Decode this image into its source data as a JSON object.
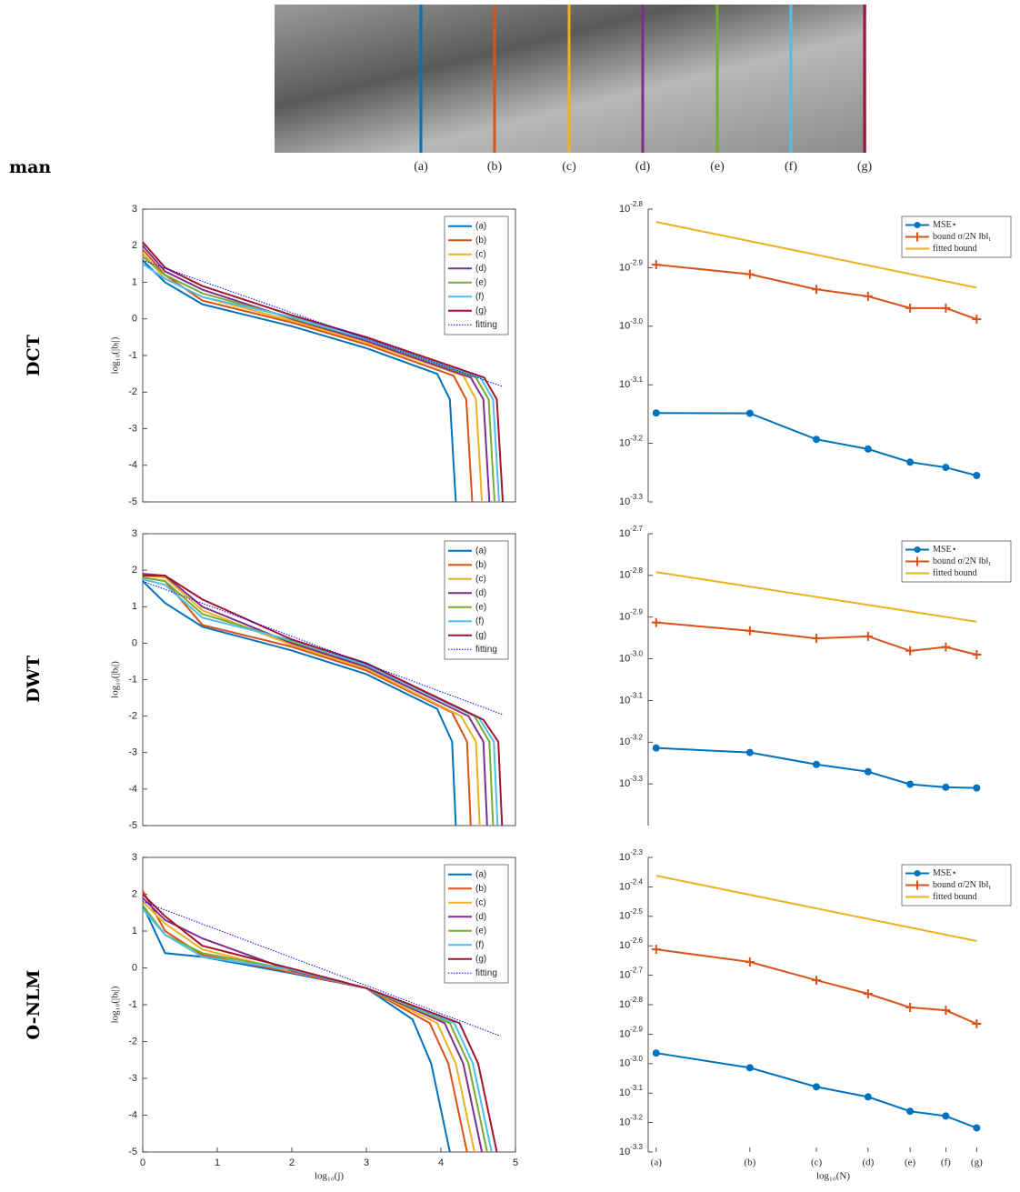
{
  "figure_label": "man",
  "strip_labels": [
    "(a)",
    "(b)",
    "(c)",
    "(d)",
    "(e)",
    "(f)",
    "(g)"
  ],
  "row_labels": [
    "DCT",
    "DWT",
    "O-NLM"
  ],
  "chart_data": [
    {
      "type": "line",
      "ylabel": "log₁₀(|bⱼ|)",
      "xlim": [
        0,
        5
      ],
      "ylim": [
        -5,
        3
      ],
      "yticks": [
        -5,
        -4,
        -3,
        -2,
        -1,
        0,
        1,
        2,
        3
      ],
      "box": true,
      "legend": "upper right",
      "series": [
        {
          "name": "(a)",
          "color": "#0072bd",
          "x": [
            0,
            0.3,
            0.8,
            2,
            3,
            3.95,
            4.12,
            4.2
          ],
          "values": [
            1.6,
            1.0,
            0.4,
            -0.2,
            -0.8,
            -1.5,
            -2.2,
            -5
          ]
        },
        {
          "name": "(b)",
          "color": "#d95319",
          "x": [
            0,
            0.3,
            0.8,
            2,
            3,
            4.17,
            4.34,
            4.42
          ],
          "values": [
            1.9,
            1.2,
            0.5,
            -0.1,
            -0.7,
            -1.55,
            -2.2,
            -5
          ]
        },
        {
          "name": "(c)",
          "color": "#edb120",
          "x": [
            0,
            0.3,
            0.8,
            2,
            3,
            4.3,
            4.47,
            4.55
          ],
          "values": [
            1.8,
            1.1,
            0.6,
            -0.05,
            -0.65,
            -1.55,
            -2.2,
            -5
          ]
        },
        {
          "name": "(d)",
          "color": "#7e2f8e",
          "x": [
            0,
            0.3,
            0.8,
            2,
            3,
            4.4,
            4.57,
            4.65
          ],
          "values": [
            2.0,
            1.3,
            0.8,
            0,
            -0.6,
            -1.6,
            -2.2,
            -5
          ]
        },
        {
          "name": "(e)",
          "color": "#77ac30",
          "x": [
            0,
            0.3,
            0.8,
            2,
            3,
            4.47,
            4.64,
            4.72
          ],
          "values": [
            1.7,
            1.2,
            0.7,
            0.02,
            -0.55,
            -1.6,
            -2.2,
            -5
          ]
        },
        {
          "name": "(f)",
          "color": "#4dbeee",
          "x": [
            0,
            0.3,
            0.8,
            2,
            3,
            4.53,
            4.7,
            4.78
          ],
          "values": [
            1.5,
            1.1,
            0.6,
            0.05,
            -0.55,
            -1.6,
            -2.2,
            -5
          ]
        },
        {
          "name": "(g)",
          "color": "#a2142f",
          "x": [
            0,
            0.3,
            0.8,
            2,
            3,
            4.58,
            4.75,
            4.83
          ],
          "values": [
            2.1,
            1.4,
            0.9,
            0.1,
            -0.5,
            -1.6,
            -2.2,
            -5
          ]
        },
        {
          "name": "fitting",
          "color": "#0000ff",
          "linestyle": "dotted",
          "x": [
            0,
            4.83
          ],
          "values": [
            1.6,
            -1.85
          ]
        }
      ]
    },
    {
      "type": "line",
      "log_scale": true,
      "xlim": [
        -0.015,
        0.68
      ],
      "x": [
        0,
        0.176,
        0.301,
        0.398,
        0.477,
        0.544,
        0.602
      ],
      "ylim": [
        0.0005012,
        0.001585
      ],
      "yticks": [
        {
          "value": 0.0005012,
          "label": "10^-3.3"
        },
        {
          "value": 0.000631,
          "label": "10^-3.2"
        },
        {
          "value": 0.0007943,
          "label": "10^-3.1"
        },
        {
          "value": 0.001,
          "label": "10^-3.0"
        },
        {
          "value": 0.001259,
          "label": "10^-2.9"
        },
        {
          "value": 0.001585,
          "label": "10^-2.8"
        }
      ],
      "legend": "upper right",
      "series": [
        {
          "name": "MSE⋆",
          "color": "#0072bd",
          "marker": "o",
          "values": [
            0.000711,
            0.00071,
            0.000641,
            0.000617,
            0.000586,
            0.000574,
            0.000556
          ]
        },
        {
          "name": "bound σ/2N ‖b‖₁",
          "color": "#d95319",
          "marker": "+",
          "values": [
            0.001274,
            0.001227,
            0.001156,
            0.001125,
            0.001074,
            0.001074,
            0.001028
          ]
        },
        {
          "name": "fitted bound",
          "color": "#edb120",
          "x": [
            0,
            0.602
          ],
          "values": [
            0.001507,
            0.001164
          ]
        }
      ]
    },
    {
      "type": "line",
      "ylabel": "log₁₀(|bⱼ|)",
      "xlim": [
        0,
        5
      ],
      "ylim": [
        -5,
        3
      ],
      "yticks": [
        -5,
        -4,
        -3,
        -2,
        -1,
        0,
        1,
        2,
        3
      ],
      "box": true,
      "legend": "upper right",
      "series": [
        {
          "name": "(a)",
          "color": "#0072bd",
          "x": [
            0,
            0.3,
            0.8,
            2,
            3,
            3.95,
            4.15,
            4.2
          ],
          "values": [
            1.7,
            1.1,
            0.45,
            -0.2,
            -0.85,
            -1.8,
            -2.7,
            -5
          ]
        },
        {
          "name": "(b)",
          "color": "#d95319",
          "x": [
            0,
            0.3,
            0.8,
            2,
            3,
            4.15,
            4.35,
            4.4
          ],
          "values": [
            1.8,
            1.7,
            0.5,
            -0.1,
            -0.75,
            -1.9,
            -2.7,
            -5
          ]
        },
        {
          "name": "(c)",
          "color": "#edb120",
          "x": [
            0,
            0.3,
            0.8,
            2,
            3,
            4.27,
            4.47,
            4.52
          ],
          "values": [
            1.85,
            1.8,
            0.9,
            -0.05,
            -0.7,
            -2.0,
            -2.7,
            -5
          ]
        },
        {
          "name": "(d)",
          "color": "#7e2f8e",
          "x": [
            0,
            0.3,
            0.8,
            2,
            3,
            4.37,
            4.57,
            4.62
          ],
          "values": [
            1.9,
            1.85,
            1.0,
            0,
            -0.65,
            -2.0,
            -2.7,
            -5
          ]
        },
        {
          "name": "(e)",
          "color": "#77ac30",
          "x": [
            0,
            0.3,
            0.8,
            2,
            3,
            4.45,
            4.65,
            4.7
          ],
          "values": [
            1.8,
            1.7,
            0.8,
            0.05,
            -0.6,
            -2.0,
            -2.7,
            -5
          ]
        },
        {
          "name": "(f)",
          "color": "#4dbeee",
          "x": [
            0,
            0.3,
            0.8,
            2,
            3,
            4.51,
            4.71,
            4.76
          ],
          "values": [
            1.75,
            1.6,
            0.7,
            0.08,
            -0.6,
            -2.05,
            -2.7,
            -5
          ]
        },
        {
          "name": "(g)",
          "color": "#a2142f",
          "x": [
            0,
            0.3,
            0.8,
            2,
            3,
            4.57,
            4.77,
            4.82
          ],
          "values": [
            1.85,
            1.85,
            1.2,
            0.1,
            -0.55,
            -2.1,
            -2.7,
            -5
          ]
        },
        {
          "name": "fitting",
          "color": "#0000ff",
          "linestyle": "dotted",
          "x": [
            0,
            4.82
          ],
          "values": [
            1.7,
            -1.95
          ]
        }
      ]
    },
    {
      "type": "line",
      "log_scale": true,
      "xlim": [
        -0.015,
        0.68
      ],
      "x": [
        0,
        0.176,
        0.301,
        0.398,
        0.477,
        0.544,
        0.602
      ],
      "ylim": [
        0.0003981,
        0.001995
      ],
      "yticks": [
        {
          "value": 0.0005012,
          "label": "10^-3.3"
        },
        {
          "value": 0.000631,
          "label": "10^-3.2"
        },
        {
          "value": 0.0007943,
          "label": "10^-3.1"
        },
        {
          "value": 0.001,
          "label": "10^-3.0"
        },
        {
          "value": 0.001259,
          "label": "10^-2.9"
        },
        {
          "value": 0.001585,
          "label": "10^-2.8"
        },
        {
          "value": 0.001995,
          "label": "10^-2.7"
        }
      ],
      "legend": "upper right",
      "series": [
        {
          "name": "MSE⋆",
          "color": "#0072bd",
          "marker": "o",
          "values": [
            0.000611,
            0.000596,
            0.000558,
            0.000536,
            0.0005,
            0.000492,
            0.00049
          ]
        },
        {
          "name": "bound σ/2N ‖b‖₁",
          "color": "#d95319",
          "marker": "+",
          "values": [
            0.001222,
            0.001167,
            0.001119,
            0.001132,
            0.001045,
            0.001067,
            0.001023
          ]
        },
        {
          "name": "fitted bound",
          "color": "#edb120",
          "x": [
            0,
            0.602
          ],
          "values": [
            0.001614,
            0.001227
          ]
        }
      ]
    },
    {
      "type": "line",
      "ylabel": "log₁₀(|bⱼ|)",
      "xlabel": "log₁₀(j)",
      "xlim": [
        0,
        5
      ],
      "xticks": [
        0,
        1,
        2,
        3,
        4,
        5
      ],
      "ylim": [
        -5,
        3
      ],
      "yticks": [
        -5,
        -4,
        -3,
        -2,
        -1,
        0,
        1,
        2,
        3
      ],
      "box": true,
      "legend": "upper right",
      "series": [
        {
          "name": "(a)",
          "color": "#0072bd",
          "x": [
            0,
            0.3,
            0.8,
            2,
            3,
            3.62,
            3.87,
            4.12
          ],
          "values": [
            1.7,
            0.4,
            0.3,
            -0.15,
            -0.55,
            -1.4,
            -2.6,
            -5
          ]
        },
        {
          "name": "(b)",
          "color": "#d95319",
          "x": [
            0,
            0.3,
            0.8,
            2,
            3,
            3.85,
            4.1,
            4.35
          ],
          "values": [
            2.1,
            1.0,
            0.35,
            -0.12,
            -0.55,
            -1.5,
            -2.6,
            -5
          ]
        },
        {
          "name": "(c)",
          "color": "#edb120",
          "x": [
            0,
            0.3,
            0.8,
            2,
            3,
            3.95,
            4.2,
            4.45
          ],
          "values": [
            1.8,
            1.2,
            0.5,
            -0.1,
            -0.55,
            -1.5,
            -2.6,
            -5
          ]
        },
        {
          "name": "(d)",
          "color": "#7e2f8e",
          "x": [
            0,
            0.3,
            0.8,
            2,
            3,
            4.05,
            4.3,
            4.55
          ],
          "values": [
            1.9,
            1.3,
            0.8,
            -0.08,
            -0.55,
            -1.5,
            -2.6,
            -5
          ]
        },
        {
          "name": "(e)",
          "color": "#77ac30",
          "x": [
            0,
            0.3,
            0.8,
            2,
            3,
            4.12,
            4.37,
            4.62
          ],
          "values": [
            1.7,
            0.9,
            0.4,
            -0.05,
            -0.55,
            -1.5,
            -2.6,
            -5
          ]
        },
        {
          "name": "(f)",
          "color": "#4dbeee",
          "x": [
            0,
            0.3,
            0.8,
            2,
            3,
            4.18,
            4.43,
            4.68
          ],
          "values": [
            1.6,
            0.9,
            0.3,
            -0.05,
            -0.55,
            -1.5,
            -2.6,
            -5
          ]
        },
        {
          "name": "(g)",
          "color": "#a2142f",
          "x": [
            0,
            0.3,
            0.8,
            2,
            3,
            4.25,
            4.5,
            4.75
          ],
          "values": [
            2.0,
            1.4,
            0.6,
            -0.02,
            -0.55,
            -1.5,
            -2.6,
            -5
          ]
        },
        {
          "name": "fitting",
          "color": "#0000ff",
          "linestyle": "dotted",
          "x": [
            0,
            4.8
          ],
          "values": [
            1.8,
            -1.85
          ]
        }
      ]
    },
    {
      "type": "line",
      "log_scale": true,
      "xlabel": "log₁₀(N)",
      "xlim": [
        -0.015,
        0.68
      ],
      "x": [
        0,
        0.176,
        0.301,
        0.398,
        0.477,
        0.544,
        0.602
      ],
      "xticks": [
        {
          "value": 0,
          "label": "(a)"
        },
        {
          "value": 0.176,
          "label": "(b)"
        },
        {
          "value": 0.301,
          "label": "(c)"
        },
        {
          "value": 0.398,
          "label": "(d)"
        },
        {
          "value": 0.477,
          "label": "(e)"
        },
        {
          "value": 0.544,
          "label": "(f)"
        },
        {
          "value": 0.602,
          "label": "(g)"
        }
      ],
      "ylim": [
        0.0005012,
        0.005012
      ],
      "yticks": [
        {
          "value": 0.0005012,
          "label": "10^-3.3"
        },
        {
          "value": 0.000631,
          "label": "10^-3.2"
        },
        {
          "value": 0.0007943,
          "label": "10^-3.1"
        },
        {
          "value": 0.001,
          "label": "10^-3.0"
        },
        {
          "value": 0.001259,
          "label": "10^-2.9"
        },
        {
          "value": 0.001585,
          "label": "10^-2.8"
        },
        {
          "value": 0.001995,
          "label": "10^-2.7"
        },
        {
          "value": 0.002512,
          "label": "10^-2.6"
        },
        {
          "value": 0.003162,
          "label": "10^-2.5"
        },
        {
          "value": 0.003981,
          "label": "10^-2.4"
        },
        {
          "value": 0.005012,
          "label": "10^-2.3"
        }
      ],
      "legend": "upper right",
      "series": [
        {
          "name": "MSE⋆",
          "color": "#0072bd",
          "marker": "o",
          "values": [
            0.001086,
            0.000968,
            0.000834,
            0.000771,
            0.000689,
            0.000664,
            0.000605
          ]
        },
        {
          "name": "bound σ/2N ‖b‖₁",
          "color": "#d95319",
          "marker": "+",
          "values": [
            0.002443,
            0.002213,
            0.001919,
            0.001726,
            0.001552,
            0.001517,
            0.001365
          ]
        },
        {
          "name": "fitted bound",
          "color": "#edb120",
          "x": [
            0,
            0.602
          ],
          "values": [
            0.004345,
            0.002606
          ]
        }
      ]
    }
  ]
}
